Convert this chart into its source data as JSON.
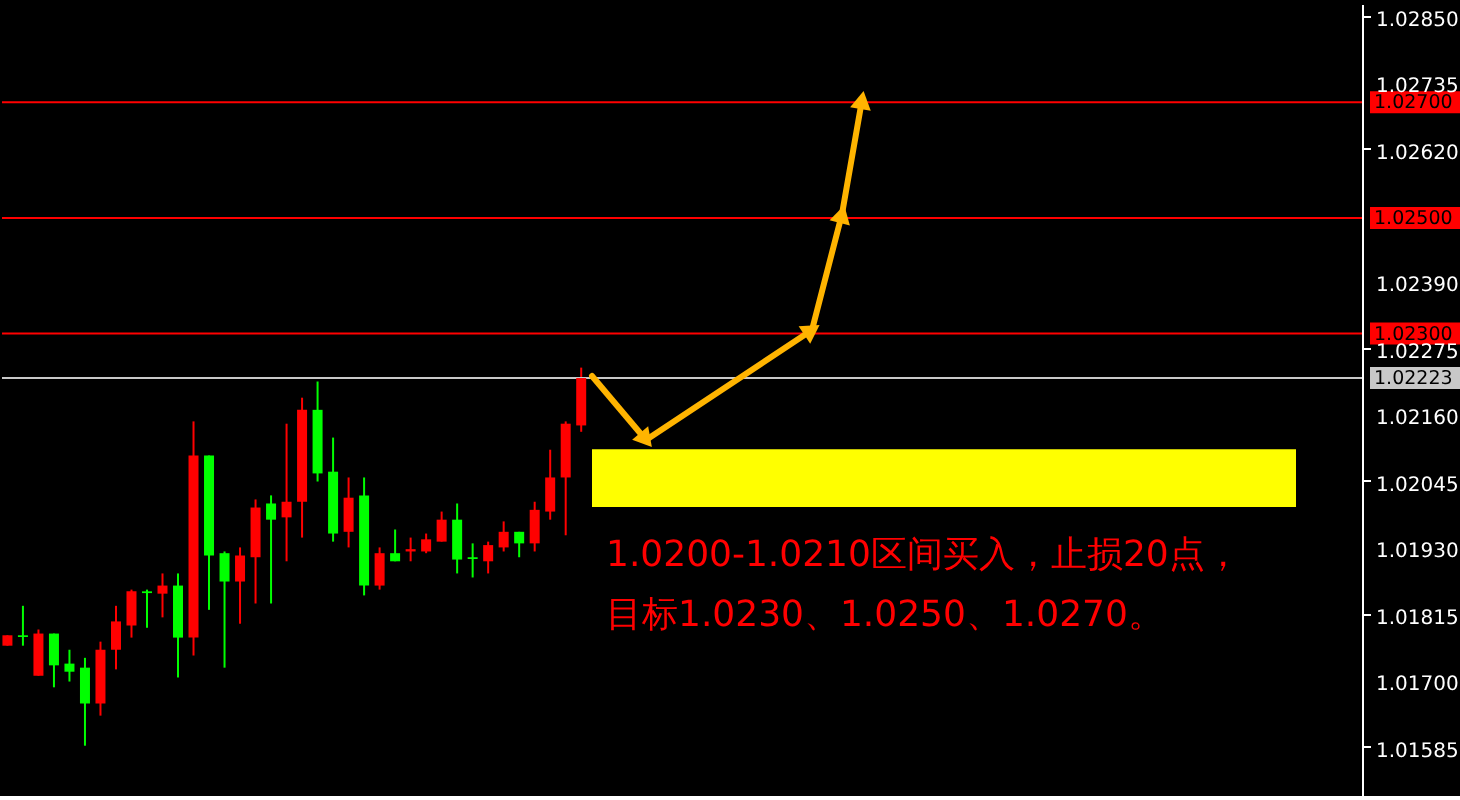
{
  "chart_data": {
    "type": "candlestick",
    "categories": [
      null,
      null,
      null,
      null,
      null,
      null,
      null,
      null,
      null,
      null,
      null,
      null,
      null,
      null,
      null,
      null,
      null,
      null,
      null,
      null,
      null,
      null,
      null,
      null,
      null,
      null,
      null,
      null,
      null,
      null,
      null,
      null,
      null,
      null,
      null,
      null,
      null,
      null,
      null,
      null,
      null,
      null,
      null,
      null,
      null,
      null,
      null,
      null,
      null,
      null,
      null,
      null,
      null,
      null,
      null,
      null,
      null,
      null,
      null,
      null,
      null,
      null,
      null,
      null,
      null,
      null,
      null,
      null,
      null,
      null,
      null,
      null,
      null,
      null,
      null,
      null,
      null,
      null,
      null,
      null,
      null,
      null,
      null,
      null,
      null,
      null,
      null,
      null
    ],
    "ohlc": [
      [
        1.0176,
        1.01778,
        1.0176,
        1.01778
      ],
      [
        1.01778,
        1.01829,
        1.0176,
        1.01775
      ],
      [
        1.01708,
        1.01788,
        1.01708,
        1.01781
      ],
      [
        1.01781,
        1.01781,
        1.01688,
        1.01726
      ],
      [
        1.01729,
        1.01753,
        1.01698,
        1.01715
      ],
      [
        1.01722,
        1.01739,
        1.01587,
        1.0166
      ],
      [
        1.0166,
        1.01767,
        1.01639,
        1.01753
      ],
      [
        1.01753,
        1.01829,
        1.01719,
        1.01802
      ],
      [
        1.01795,
        1.01857,
        1.01774,
        1.01854
      ],
      [
        1.01854,
        1.01857,
        1.01791,
        1.01851
      ],
      [
        1.0185,
        1.01885,
        1.01809,
        1.01864
      ],
      [
        1.01864,
        1.01885,
        1.01705,
        1.01774
      ],
      [
        1.01774,
        1.02148,
        1.01743,
        1.02089
      ],
      [
        1.02089,
        1.02089,
        1.01822,
        1.01916
      ],
      [
        1.0192,
        1.01923,
        1.01722,
        1.01871
      ],
      [
        1.01871,
        1.0193,
        1.01798,
        1.01916
      ],
      [
        1.01913,
        1.02013,
        1.01833,
        1.01999
      ],
      [
        1.02006,
        1.0202,
        1.01833,
        1.01978
      ],
      [
        1.01982,
        1.02144,
        1.01906,
        1.02009
      ],
      [
        1.02009,
        1.02189,
        1.01947,
        1.02168
      ],
      [
        1.02168,
        1.02217,
        1.02044,
        1.02058
      ],
      [
        1.02061,
        1.0212,
        1.0194,
        1.01954
      ],
      [
        1.01957,
        1.02051,
        1.0193,
        1.02016
      ],
      [
        1.0202,
        1.02051,
        1.01847,
        1.01864
      ],
      [
        1.01864,
        1.0193,
        1.01857,
        1.0192
      ],
      [
        1.0192,
        1.01961,
        1.01906,
        1.01906
      ],
      [
        1.01923,
        1.01947,
        1.01906,
        1.01927
      ],
      [
        1.01923,
        1.01954,
        1.0192,
        1.01944
      ],
      [
        1.0194,
        1.01992,
        1.0194,
        1.01978
      ],
      [
        1.01978,
        1.02006,
        1.01885,
        1.01909
      ],
      [
        1.01913,
        1.01937,
        1.01878,
        1.0191
      ],
      [
        1.01906,
        1.0194,
        1.01885,
        1.01934
      ],
      [
        1.0193,
        1.01975,
        1.01923,
        1.01957
      ],
      [
        1.01957,
        1.01957,
        1.01913,
        1.01937
      ],
      [
        1.01937,
        1.02009,
        1.01923,
        1.01995
      ],
      [
        1.01992,
        1.02099,
        1.01978,
        1.02051
      ],
      [
        1.02051,
        1.02148,
        1.01951,
        1.02144
      ],
      [
        1.02141,
        1.02241,
        1.0213,
        1.02223
      ],
      null,
      null,
      null,
      null,
      null,
      null,
      null,
      null,
      null,
      null,
      null,
      null,
      null,
      null,
      null,
      null,
      null,
      null,
      null,
      null,
      null,
      null,
      null,
      null,
      null,
      null,
      null,
      null,
      null,
      null,
      null,
      null,
      null,
      null,
      null,
      null,
      null,
      null,
      null,
      null,
      null,
      null,
      null,
      null,
      null,
      null,
      null,
      null,
      null,
      null
    ],
    "colors": [
      "#ff0000",
      "#00ff00",
      "#ff0000",
      "#00ff00",
      "#00ff00",
      "#00ff00",
      "#ff0000",
      "#ff0000",
      "#ff0000",
      "#00ff00",
      "#ff0000",
      "#00ff00",
      "#ff0000",
      "#00ff00",
      "#00ff00",
      "#ff0000",
      "#ff0000",
      "#00ff00",
      "#ff0000",
      "#ff0000",
      "#00ff00",
      "#00ff00",
      "#ff0000",
      "#00ff00",
      "#ff0000",
      "#00ff00",
      "#ff0000",
      "#ff0000",
      "#ff0000",
      "#00ff00",
      "#00ff00",
      "#ff0000",
      "#ff0000",
      "#00ff00",
      "#ff0000",
      "#ff0000",
      "#ff0000",
      "#ff0000",
      null,
      null,
      null,
      null,
      null,
      null,
      null,
      null,
      null,
      null,
      null,
      null,
      null,
      null,
      null,
      null,
      null,
      null,
      null,
      null,
      null,
      null,
      null,
      null,
      null,
      null,
      null,
      null,
      null,
      null,
      null,
      null,
      null,
      null,
      null,
      null,
      null,
      null,
      null,
      null,
      null,
      null,
      null,
      null,
      null,
      null,
      null,
      null,
      null,
      null
    ],
    "ylim": [
      1.015,
      1.0287
    ],
    "yticks": [
      {
        "value": 1.0285,
        "label": "1.02850"
      },
      {
        "value": 1.02735,
        "label": "1.02735"
      },
      {
        "value": 1.0262,
        "label": "1.02620"
      },
      {
        "value": 1.0239,
        "label": "1.02390"
      },
      {
        "value": 1.02275,
        "label": "1.02275"
      },
      {
        "value": 1.0216,
        "label": "1.02160"
      },
      {
        "value": 1.02045,
        "label": "1.02045"
      },
      {
        "value": 1.0193,
        "label": "1.01930"
      },
      {
        "value": 1.01815,
        "label": "1.01815"
      },
      {
        "value": 1.017,
        "label": "1.01700"
      },
      {
        "value": 1.01585,
        "label": "1.01585"
      }
    ],
    "tick_labels": "y",
    "grid": false,
    "ref_lines": [
      {
        "axis": "y",
        "value": 1.027,
        "label": "1.02700",
        "color": "#ff0000"
      },
      {
        "axis": "y",
        "value": 1.025,
        "label": "1.02500",
        "color": "#ff0000"
      },
      {
        "axis": "y",
        "value": 1.023,
        "label": "1.02300",
        "color": "#ff0000"
      },
      {
        "axis": "y",
        "value": 1.02223,
        "label": "1.02223",
        "color": "#c8c8c8"
      }
    ],
    "bands": [
      {
        "axis": "y",
        "from": 1.02,
        "to": 1.021,
        "color": "#ffff00"
      }
    ],
    "annotations": [
      "1.0200-1.0210区间买入，止损20点，",
      "目标1.0230、1.0250、1.0270。"
    ]
  }
}
